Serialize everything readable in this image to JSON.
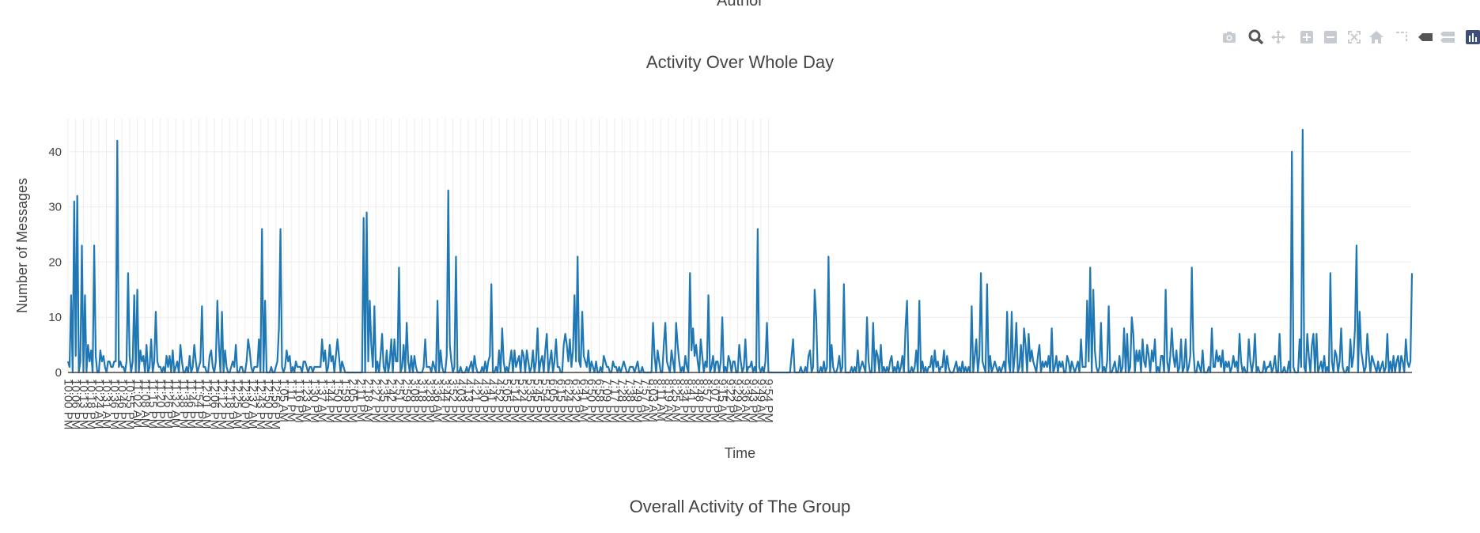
{
  "header_fragment": "Author",
  "modebar": {
    "icons": [
      "camera-icon",
      "zoom-icon",
      "pan-icon",
      "zoom-in-icon",
      "zoom-out-icon",
      "autoscale-icon",
      "reset-axes-icon",
      "spike-lines-icon",
      "hover-closest-icon",
      "hover-compare-icon",
      "plotly-logo-icon"
    ]
  },
  "next_section_title": "Overall Activity of The Group",
  "chart_data": {
    "type": "line",
    "title": "Activity Over Whole Day",
    "xlabel": "Time",
    "ylabel": "Number of Messages",
    "ylim": [
      0,
      46
    ],
    "y_ticks": [
      0,
      10,
      20,
      30,
      40
    ],
    "grid": true,
    "line_color": "#1f77b4",
    "x_tick_labels": [
      "10:00 PM",
      "10:06 PM",
      "10:13 PM",
      "10:18 PM",
      "10:24 AM",
      "10:31 AM",
      "10:36 PM",
      "10:46 PM",
      "10:55 PM",
      "11:02 AM",
      "11:08 AM",
      "11:15 PM",
      "11:20 PM",
      "11:26 PM",
      "11:32 AM",
      "11:38 PM",
      "11:46 PM",
      "11:54 PM",
      "12:01 AM",
      "12:06 PM",
      "12:12 PM",
      "12:18 PM",
      "12:25 AM",
      "12:30 PM",
      "12:37 AM",
      "12:43 PM",
      "12:50 PM",
      "12:56 PM",
      "1:05 AM",
      "1:11 PM",
      "1:16 PM",
      "1:23 AM",
      "1:30 PM",
      "1:37 AM",
      "1:44 PM",
      "1:50 PM",
      "1:59 PM",
      "2:05 PM",
      "2:11 PM",
      "2:18 AM",
      "2:27 PM",
      "2:35 PM",
      "2:42 PM",
      "2:51 PM",
      "2:59 PM",
      "3:08 PM",
      "3:18 PM",
      "3:28 PM",
      "3:36 AM",
      "3:44 PM",
      "3:52 PM",
      "4:03 PM",
      "4:13 PM",
      "4:21 PM",
      "4:30 PM",
      "4:41 PM",
      "4:52 PM",
      "5:05 PM",
      "5:14 PM",
      "5:24 PM",
      "5:35 PM",
      "5:45 PM",
      "5:54 PM",
      "6:05 PM",
      "6:15 PM",
      "6:24 PM",
      "6:32 PM",
      "6:41 AM",
      "6:50 PM",
      "6:58 PM",
      "7:09 PM",
      "7:17 PM",
      "7:28 PM",
      "7:38 PM",
      "7:49 PM",
      "7:57 AM",
      "8:03 AM",
      "8:11 AM",
      "8:19 AM",
      "8:25 AM",
      "8:34 PM",
      "8:41 PM",
      "8:48 PM",
      "8:57 PM",
      "9:07 PM",
      "9:15 AM",
      "9:22 PM",
      "9:29 AM",
      "9:36 AM",
      "9:43 PM",
      "9:49 AM",
      "9:54 PM"
    ],
    "x_points_per_tick": 5,
    "values": [
      2,
      1,
      14,
      0,
      31,
      3,
      32,
      0,
      2,
      23,
      0,
      14,
      0,
      5,
      2,
      4,
      0,
      23,
      3,
      0,
      0,
      4,
      2,
      3,
      1,
      0,
      2,
      2,
      1,
      1,
      2,
      2,
      42,
      1,
      2,
      1,
      1,
      0,
      2,
      18,
      3,
      0,
      2,
      14,
      0,
      15,
      0,
      4,
      2,
      3,
      0,
      5,
      0,
      1,
      6,
      0,
      2,
      11,
      2,
      1,
      1,
      0,
      1,
      0,
      3,
      1,
      3,
      0,
      4,
      0,
      1,
      2,
      0,
      5,
      2,
      0,
      0,
      1,
      0,
      3,
      0,
      1,
      5,
      2,
      0,
      1,
      2,
      12,
      1,
      1,
      0,
      0,
      3,
      4,
      1,
      0,
      2,
      13,
      5,
      0,
      11,
      0,
      4,
      1,
      0,
      0,
      1,
      2,
      1,
      5,
      0,
      0,
      1,
      1,
      0,
      0,
      2,
      6,
      4,
      1,
      0,
      1,
      1,
      1,
      6,
      0,
      26,
      0,
      13,
      0,
      0,
      0,
      1,
      0,
      0,
      1,
      2,
      8,
      26,
      1,
      0,
      1,
      4,
      2,
      3,
      0,
      1,
      0,
      2,
      1,
      1,
      1,
      0,
      2,
      2,
      1,
      0,
      1,
      1,
      0,
      1,
      1,
      1,
      1,
      1,
      6,
      2,
      4,
      0,
      1,
      5,
      2,
      3,
      0,
      3,
      6,
      3,
      0,
      2,
      1,
      0,
      0,
      0,
      0,
      0,
      0,
      0,
      0,
      0,
      0,
      0,
      0,
      28,
      0,
      29,
      2,
      13,
      5,
      1,
      12,
      0,
      2,
      0,
      3,
      7,
      1,
      0,
      4,
      0,
      2,
      6,
      0,
      6,
      2,
      2,
      19,
      0,
      1,
      5,
      0,
      9,
      2,
      0,
      3,
      0,
      3,
      1,
      0,
      0,
      0,
      0,
      1,
      6,
      1,
      1,
      1,
      0,
      2,
      1,
      0,
      13,
      0,
      4,
      1,
      0,
      0,
      3,
      33,
      5,
      2,
      0,
      1,
      21,
      0,
      0,
      1,
      0,
      0,
      0,
      1,
      0,
      1,
      2,
      0,
      3,
      1,
      0,
      0,
      0,
      1,
      0,
      2,
      0,
      2,
      3,
      16,
      0,
      0,
      1,
      0,
      4,
      0,
      8,
      2,
      0,
      1,
      0,
      2,
      4,
      0,
      4,
      1,
      2,
      3,
      0,
      4,
      3,
      0,
      4,
      2,
      0,
      1,
      4,
      0,
      2,
      8,
      0,
      2,
      3,
      0,
      4,
      7,
      0,
      2,
      4,
      0,
      2,
      6,
      1,
      1,
      0,
      0,
      5,
      7,
      5,
      2,
      6,
      1,
      4,
      14,
      2,
      21,
      2,
      1,
      11,
      3,
      2,
      1,
      4,
      0,
      2,
      1,
      0,
      2,
      0,
      0,
      1,
      0,
      3,
      2,
      1,
      1,
      0,
      0,
      2,
      1,
      1,
      0,
      1,
      0,
      1,
      2,
      1,
      0,
      0,
      1,
      1,
      1,
      0,
      1,
      2,
      0,
      0,
      1,
      0,
      0,
      0,
      0,
      0,
      0,
      9,
      3,
      0,
      4,
      2,
      0,
      0,
      5,
      9,
      2,
      1,
      0,
      4,
      2,
      0,
      9,
      5,
      2,
      0,
      1,
      0,
      3,
      1,
      0,
      18,
      4,
      8,
      3,
      5,
      2,
      0,
      6,
      3,
      0,
      2,
      1,
      14,
      0,
      1,
      3,
      0,
      2,
      2,
      0,
      2,
      10,
      0,
      1,
      0,
      3,
      2,
      0,
      2,
      2,
      0,
      0,
      5,
      2,
      0,
      1,
      6,
      0,
      1,
      1,
      2,
      0,
      1,
      0,
      26,
      1,
      0,
      1,
      0,
      2,
      9,
      0,
      0,
      0,
      0,
      0,
      0,
      0,
      0,
      0,
      0,
      0,
      0,
      0,
      0,
      0,
      3,
      6,
      0,
      0,
      0,
      0,
      1,
      0,
      0,
      1,
      0,
      3,
      4,
      0,
      1,
      15,
      10,
      0,
      0,
      1,
      0,
      2,
      0,
      1,
      21,
      0,
      5,
      1,
      0,
      0,
      1,
      3,
      0,
      1,
      16,
      0,
      0,
      0,
      0,
      1,
      0,
      1,
      0,
      4,
      0,
      1,
      2,
      1,
      0,
      10,
      2,
      0,
      0,
      9,
      0,
      4,
      3,
      0,
      5,
      0,
      1,
      0,
      1,
      0,
      2,
      3,
      0,
      1,
      0,
      2,
      0,
      1,
      3,
      0,
      8,
      13,
      0,
      0,
      1,
      0,
      1,
      4,
      0,
      13,
      0,
      2,
      0,
      1,
      0,
      1,
      1,
      3,
      0,
      4,
      1,
      2,
      0,
      1,
      1,
      4,
      0,
      3,
      1,
      0,
      0,
      0,
      1,
      2,
      0,
      1,
      0,
      2,
      0,
      1,
      0,
      1,
      0,
      12,
      0,
      3,
      6,
      0,
      3,
      18,
      2,
      1,
      0,
      16,
      0,
      3,
      0,
      1,
      2,
      1,
      0,
      1,
      0,
      1,
      2,
      0,
      11,
      2,
      0,
      11,
      0,
      3,
      9,
      0,
      1,
      5,
      0,
      8,
      5,
      0,
      7,
      2,
      4,
      2,
      1,
      0,
      3,
      5,
      0,
      2,
      1,
      2,
      1,
      3,
      0,
      8,
      0,
      1,
      3,
      0,
      2,
      1,
      2,
      0,
      0,
      3,
      2,
      0,
      2,
      1,
      0,
      1,
      2,
      0,
      6,
      1,
      1,
      1,
      13,
      2,
      19,
      0,
      15,
      4,
      1,
      0,
      1,
      9,
      0,
      1,
      0,
      2,
      12,
      0,
      0,
      1,
      2,
      0,
      0,
      3,
      0,
      1,
      8,
      0,
      7,
      0,
      1,
      10,
      7,
      0,
      4,
      2,
      4,
      0,
      6,
      2,
      1,
      5,
      3,
      0,
      4,
      2,
      6,
      0,
      1,
      0,
      3,
      3,
      0,
      15,
      2,
      0,
      3,
      8,
      3,
      1,
      4,
      0,
      1,
      6,
      0,
      1,
      6,
      0,
      1,
      3,
      19,
      4,
      0,
      0,
      2,
      1,
      0,
      4,
      0,
      0,
      0,
      1,
      0,
      8,
      1,
      1,
      4,
      2,
      3,
      1,
      4,
      0,
      2,
      1,
      2,
      0,
      1,
      3,
      1,
      2,
      0,
      7,
      2,
      0,
      1,
      0,
      0,
      6,
      2,
      0,
      2,
      7,
      0,
      1,
      0,
      0,
      0,
      2,
      0,
      1,
      1,
      2,
      0,
      1,
      3,
      0,
      0,
      7,
      0,
      0,
      1,
      0,
      0,
      2,
      0,
      40,
      1,
      0,
      0,
      0,
      6,
      1,
      44,
      1,
      0,
      7,
      3,
      0,
      5,
      7,
      0,
      7,
      0,
      1,
      2,
      0,
      3,
      0,
      1,
      0,
      18,
      2,
      0,
      4,
      3,
      0,
      2,
      8,
      1,
      0,
      0,
      1,
      0,
      6,
      1,
      3,
      8,
      23,
      0,
      11,
      4,
      2,
      0,
      1,
      7,
      3,
      0,
      3,
      2,
      1,
      0,
      2,
      0,
      1,
      2,
      0,
      1,
      7,
      0,
      2,
      0,
      3,
      0,
      2,
      3,
      0,
      3,
      2,
      0,
      6,
      2,
      1,
      2,
      18
    ]
  }
}
